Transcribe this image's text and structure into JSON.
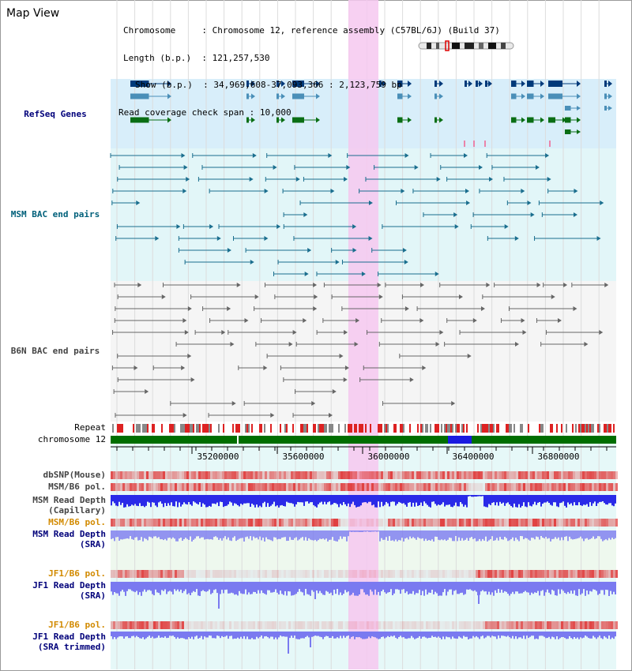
{
  "title": "Map View",
  "header": {
    "chromosome_key": "Chromosome",
    "chromosome_val": "Chromosome 12, reference assembly (C57BL/6J) (Build 37)",
    "length_key": "Length (b.p.)",
    "length_val": "121,257,530",
    "show_key": "Show (b.p.)",
    "show_val": "34,969,608-37,093,366 : 2,123,759 bp",
    "read_cov_key": "Read coverage check span",
    "read_cov_val": "10,000"
  },
  "tracks": {
    "refseq": "RefSeq Genes",
    "msm_bac": "MSM BAC end pairs",
    "b6n_bac": "B6N BAC end pairs",
    "repeat": "Repeat",
    "chromosome": "chromosome 12",
    "dbsnp": "dbSNP(Mouse)",
    "msm_b6_pol": "MSM/B6 pol.",
    "msm_depth_cap_1": "MSM Read Depth",
    "msm_depth_cap_2": "(Capillary)",
    "msm_b6_pol_sra": "MSM/B6 pol.",
    "msm_depth_sra_1": "MSM Read Depth",
    "msm_depth_sra_2": "(SRA)",
    "jf1_pol": "JF1/B6 pol.",
    "jf1_depth_1": "JF1 Read Depth",
    "jf1_depth_2": "(SRA)",
    "jf1_pol_t": "JF1/B6 pol.",
    "jf1_depth_t_1": "JF1 Read Depth",
    "jf1_depth_t_2": "(SRA trimmed)"
  },
  "axis": {
    "ticks": [
      "35200000",
      "35600000",
      "36000000",
      "36400000",
      "36800000"
    ]
  },
  "colors": {
    "highlight": "#f6c8f0",
    "refseq_bg": "#d8eefa",
    "gene_dark": "#003a7a",
    "gene_mid": "#4a8fb8",
    "gene_green": "#0a6e14",
    "msm_pair": "#1a6e8e",
    "b6n_pair": "#666666",
    "repeat_red": "#dd2222",
    "chrom_green": "#006e00",
    "chrom_blue": "#1a1ae0",
    "depth_blue": "#2a2ae8",
    "depth_light": "#7a7af0",
    "snp_red": "#e04040"
  },
  "icons": {
    "chromosome_ideogram": "chromosome-ideogram-icon"
  }
}
